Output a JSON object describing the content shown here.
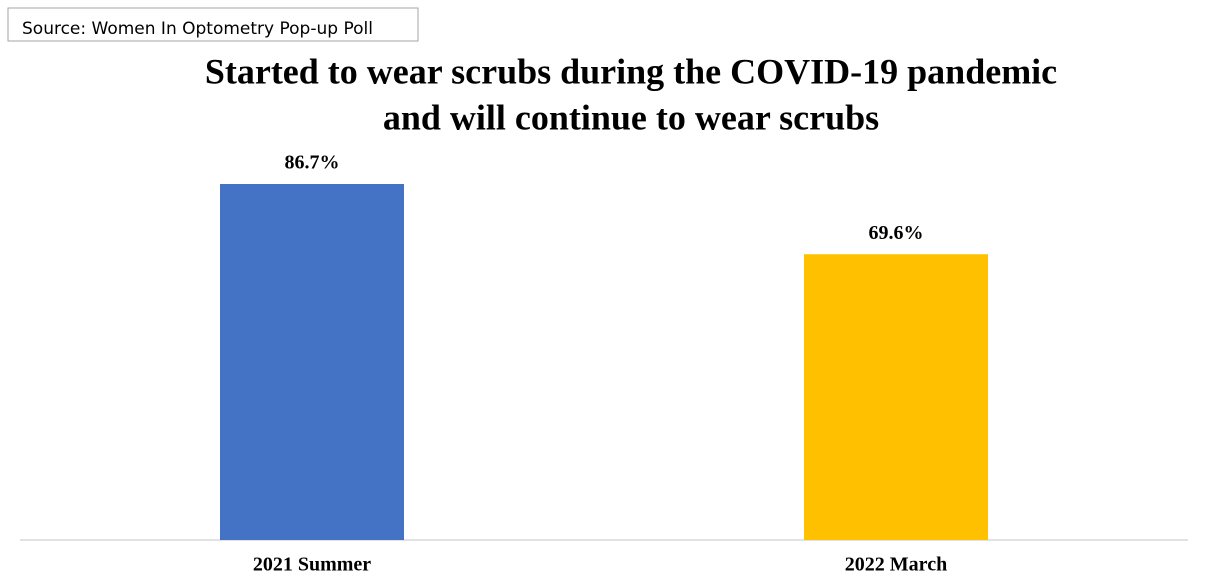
{
  "chart_data": {
    "type": "bar",
    "source": "Source: Women In Optometry Pop-up Poll",
    "title": [
      "Started to wear scrubs during the COVID-19 pandemic",
      "and will continue to wear scrubs"
    ],
    "categories": [
      "2021 Summer",
      "2022 March"
    ],
    "values": [
      86.7,
      69.6
    ],
    "value_labels": [
      "86.7%",
      "69.6%"
    ],
    "colors": [
      "#4472c4",
      "#ffc000"
    ]
  }
}
